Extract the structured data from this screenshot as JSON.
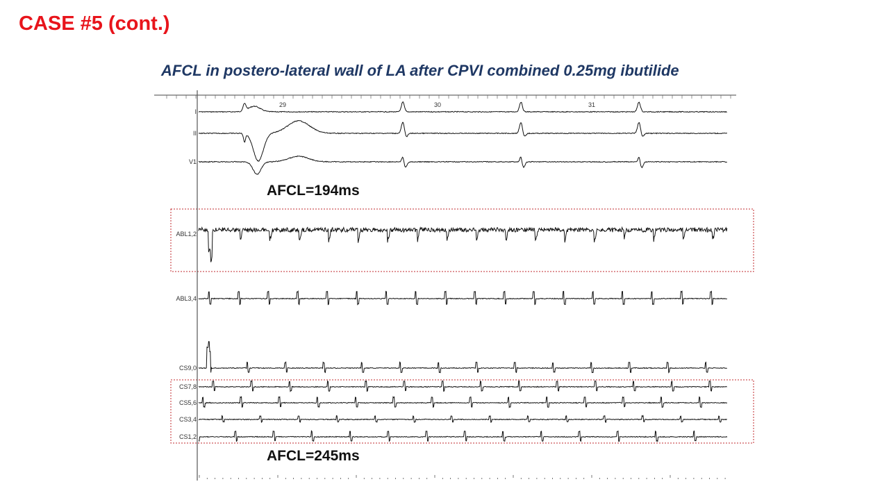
{
  "slide": {
    "heading": "CASE #5 (cont.)",
    "title": "AFCL in postero-lateral wall of LA after CPVI combined 0.25mg ibutilide",
    "annotations": [
      "AFCL=194ms",
      "AFCL=245ms"
    ],
    "colors": {
      "heading": "#e8141b",
      "title": "#1f3864",
      "highlight_box": "#c0282d"
    }
  },
  "recording": {
    "time_markers": [
      "29",
      "30",
      "31"
    ],
    "channels": [
      "I",
      "II",
      "V1",
      "ABL1,2",
      "ABL3,4",
      "CS9,0",
      "CS7,8",
      "CS5,6",
      "CS3,4",
      "CS1,2"
    ]
  }
}
